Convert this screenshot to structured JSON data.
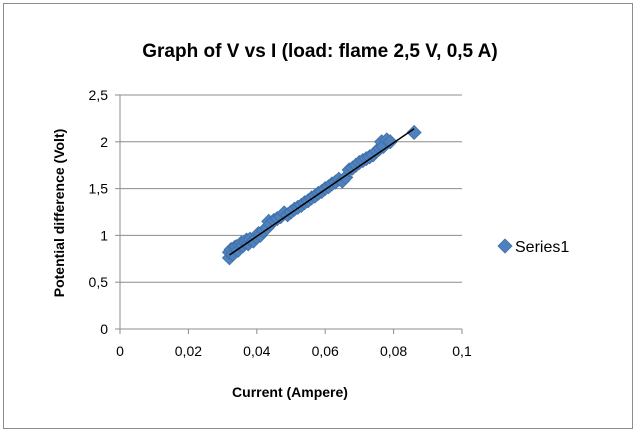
{
  "chart_data": {
    "type": "scatter",
    "title": "Graph of V vs I (load: flame 2,5 V, 0,5 A)",
    "xlabel": "Current (Ampere)",
    "ylabel": "Potential difference (Volt)",
    "xlim": [
      0,
      0.1
    ],
    "ylim": [
      0,
      2.5
    ],
    "xticks": [
      0,
      0.02,
      0.04,
      0.06,
      0.08,
      0.1
    ],
    "yticks": [
      0,
      0.5,
      1,
      1.5,
      2,
      2.5
    ],
    "xtick_labels": [
      "0",
      "0,02",
      "0,04",
      "0,06",
      "0,08",
      "0,1"
    ],
    "ytick_labels": [
      "0",
      "0,5",
      "1",
      "1,5",
      "2",
      "2,5"
    ],
    "grid": "horizontal major gridlines",
    "legend_position": "right",
    "trendline": {
      "type": "linear",
      "x": [
        0.032,
        0.086
      ],
      "y": [
        0.79,
        2.14
      ]
    },
    "series": [
      {
        "name": "Series1",
        "color": "#4f81bd",
        "marker": "diamond",
        "points": [
          [
            0.032,
            0.76
          ],
          [
            0.032,
            0.82
          ],
          [
            0.0325,
            0.85
          ],
          [
            0.033,
            0.8
          ],
          [
            0.0335,
            0.87
          ],
          [
            0.034,
            0.88
          ],
          [
            0.0345,
            0.84
          ],
          [
            0.035,
            0.9
          ],
          [
            0.0355,
            0.92
          ],
          [
            0.036,
            0.89
          ],
          [
            0.0365,
            0.93
          ],
          [
            0.037,
            0.95
          ],
          [
            0.0375,
            0.91
          ],
          [
            0.038,
            0.96
          ],
          [
            0.039,
            0.94
          ],
          [
            0.04,
            0.98
          ],
          [
            0.0405,
            1.02
          ],
          [
            0.041,
            1.0
          ],
          [
            0.042,
            1.05
          ],
          [
            0.043,
            1.08
          ],
          [
            0.0435,
            1.15
          ],
          [
            0.044,
            1.12
          ],
          [
            0.045,
            1.16
          ],
          [
            0.046,
            1.18
          ],
          [
            0.047,
            1.2
          ],
          [
            0.048,
            1.24
          ],
          [
            0.049,
            1.22
          ],
          [
            0.05,
            1.25
          ],
          [
            0.051,
            1.28
          ],
          [
            0.052,
            1.3
          ],
          [
            0.053,
            1.32
          ],
          [
            0.054,
            1.35
          ],
          [
            0.055,
            1.37
          ],
          [
            0.056,
            1.4
          ],
          [
            0.057,
            1.42
          ],
          [
            0.058,
            1.45
          ],
          [
            0.059,
            1.47
          ],
          [
            0.06,
            1.5
          ],
          [
            0.061,
            1.52
          ],
          [
            0.062,
            1.55
          ],
          [
            0.063,
            1.57
          ],
          [
            0.064,
            1.6
          ],
          [
            0.065,
            1.58
          ],
          [
            0.066,
            1.62
          ],
          [
            0.067,
            1.7
          ],
          [
            0.068,
            1.72
          ],
          [
            0.069,
            1.75
          ],
          [
            0.07,
            1.78
          ],
          [
            0.071,
            1.8
          ],
          [
            0.072,
            1.82
          ],
          [
            0.073,
            1.84
          ],
          [
            0.074,
            1.86
          ],
          [
            0.075,
            1.9
          ],
          [
            0.076,
            1.93
          ],
          [
            0.0765,
            2.0
          ],
          [
            0.077,
            1.95
          ],
          [
            0.078,
            2.02
          ],
          [
            0.079,
            2.0
          ],
          [
            0.086,
            2.1
          ]
        ]
      }
    ]
  }
}
